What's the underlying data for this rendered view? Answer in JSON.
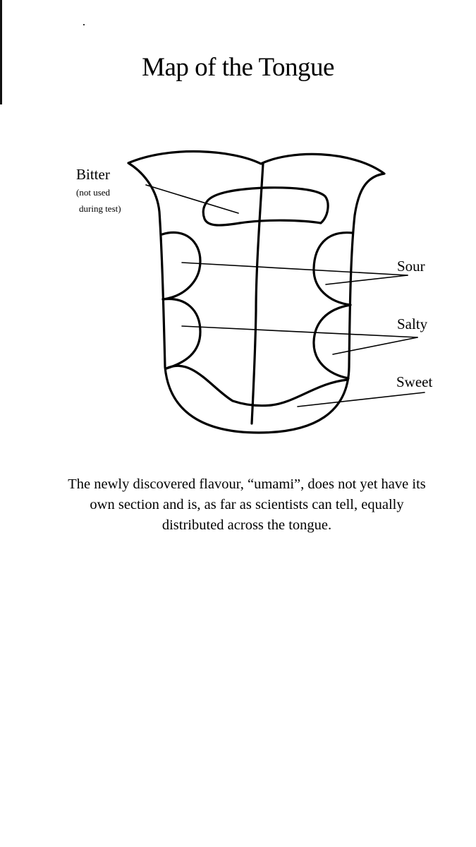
{
  "title": "Map of the Tongue",
  "labels": {
    "bitter": "Bitter",
    "bitter_note_line1": "(not used",
    "bitter_note_line2": "during test)",
    "sour": "Sour",
    "salty": "Salty",
    "sweet": "Sweet"
  },
  "caption": "The newly discovered flavour, “umami”, does not yet have its own section and is, as far as scientists can tell, equally distributed across the tongue.",
  "colors": {
    "ink": "#000000",
    "paper": "#ffffff"
  }
}
